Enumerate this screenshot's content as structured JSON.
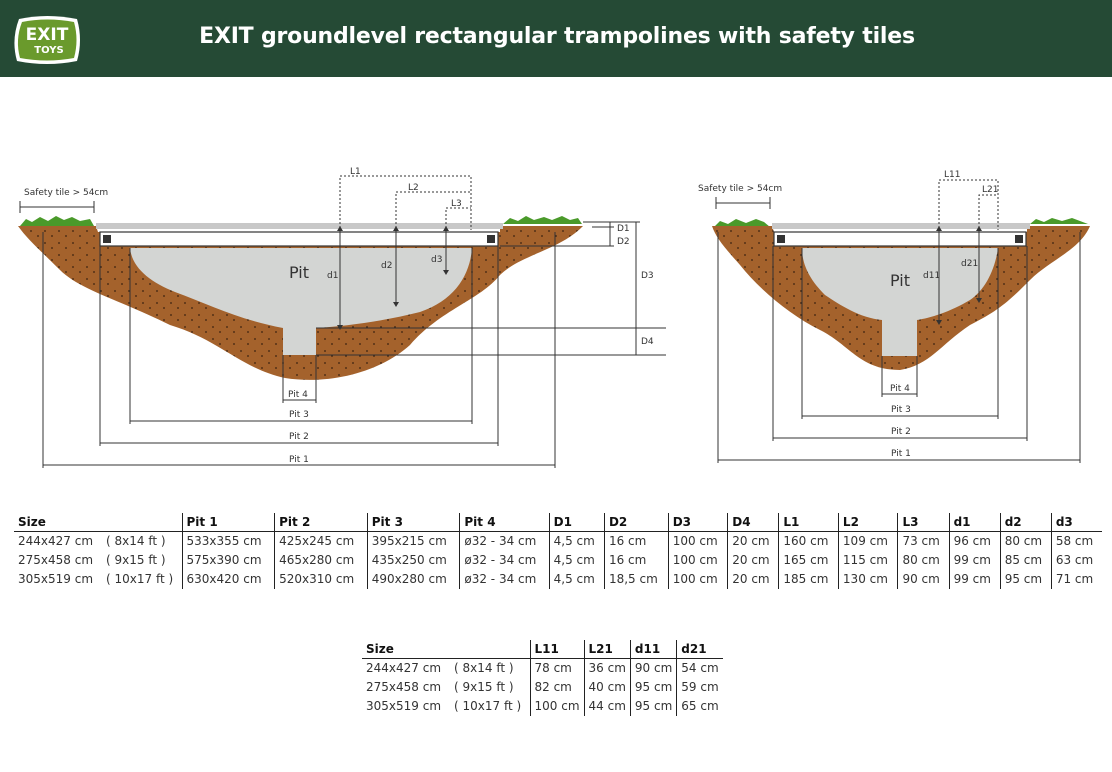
{
  "header": {
    "logo_text_line1": "EXIT",
    "logo_text_line2": "TOYS",
    "title": "EXIT groundlevel rectangular trampolines with safety tiles"
  },
  "diagram_left": {
    "safety_tile": "Safety tile > 54cm",
    "pit": "Pit",
    "labels": {
      "L1": "L1",
      "L2": "L2",
      "L3": "L3",
      "D1": "D1",
      "D2": "D2",
      "D3": "D3",
      "D4": "D4",
      "d1": "d1",
      "d2": "d2",
      "d3": "d3"
    },
    "pits": {
      "pit1": "Pit 1",
      "pit2": "Pit 2",
      "pit3": "Pit 3",
      "pit4": "Pit 4"
    }
  },
  "diagram_right": {
    "safety_tile": "Safety tile > 54cm",
    "pit": "Pit",
    "labels": {
      "L11": "L11",
      "L21": "L21",
      "d11": "d11",
      "d21": "d21"
    },
    "pits": {
      "pit1": "Pit 1",
      "pit2": "Pit 2",
      "pit3": "Pit 3",
      "pit4": "Pit 4"
    }
  },
  "table_main": {
    "headers": [
      "Size",
      "Pit 1",
      "Pit 2",
      "Pit 3",
      "Pit 4",
      "D1",
      "D2",
      "D3",
      "D4",
      "L1",
      "L2",
      "L3",
      "d1",
      "d2",
      "d3"
    ],
    "rows": [
      {
        "size": "244x427 cm",
        "ft": "( 8x14 ft )",
        "cells": [
          "533x355 cm",
          "425x245 cm",
          "395x215 cm",
          "ø32 - 34 cm",
          "4,5 cm",
          "16 cm",
          "100 cm",
          "20 cm",
          "160 cm",
          "109 cm",
          "73 cm",
          "96 cm",
          "80 cm",
          "58 cm"
        ]
      },
      {
        "size": "275x458 cm",
        "ft": "( 9x15 ft )",
        "cells": [
          "575x390 cm",
          "465x280 cm",
          "435x250 cm",
          "ø32 - 34 cm",
          "4,5 cm",
          "16 cm",
          "100 cm",
          "20 cm",
          "165 cm",
          "115 cm",
          "80 cm",
          "99 cm",
          "85 cm",
          "63 cm"
        ]
      },
      {
        "size": "305x519 cm",
        "ft": "( 10x17 ft )",
        "cells": [
          "630x420 cm",
          "520x310 cm",
          "490x280 cm",
          "ø32 - 34 cm",
          "4,5 cm",
          "18,5 cm",
          "100 cm",
          "20 cm",
          "185 cm",
          "130 cm",
          "90 cm",
          "99 cm",
          "95 cm",
          "71 cm"
        ]
      }
    ]
  },
  "table_small": {
    "headers": [
      "Size",
      "L11",
      "L21",
      "d11",
      "d21"
    ],
    "rows": [
      {
        "size": "244x427 cm",
        "ft": "( 8x14 ft )",
        "cells": [
          "78 cm",
          "36 cm",
          "90 cm",
          "54 cm"
        ]
      },
      {
        "size": "275x458 cm",
        "ft": "( 9x15 ft )",
        "cells": [
          "82 cm",
          "40 cm",
          "95 cm",
          "59 cm"
        ]
      },
      {
        "size": "305x519 cm",
        "ft": "( 10x17 ft )",
        "cells": [
          "100 cm",
          "44 cm",
          "95 cm",
          "65 cm"
        ]
      }
    ]
  }
}
